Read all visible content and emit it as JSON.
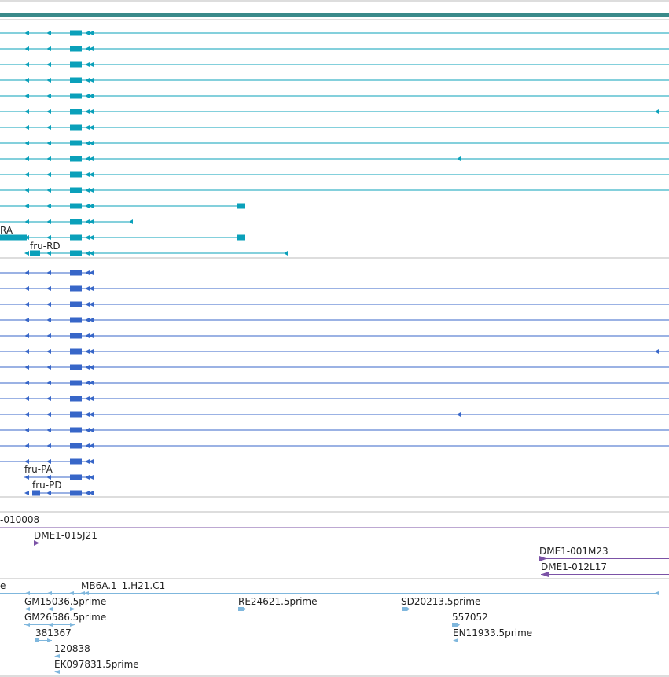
{
  "colors": {
    "header_bar": "#3a8a8a",
    "track_divider": "#bbbbbb",
    "transcript_teal": "#0aa0ba",
    "transcript_blue": "#3766c8",
    "clone_purple": "#7b52a6",
    "est_lightblue": "#7fb7dd"
  },
  "labels": {
    "teal_ra": "RA",
    "teal_rd": "fru-RD",
    "blue_pa": "fru-PA",
    "blue_pd": "fru-PD",
    "clone_010008": "-010008",
    "clone_015j21": "DME1-015J21",
    "clone_001m23": "DME1-001M23",
    "clone_012l17": "DME1-012L17",
    "est_e": "e",
    "est_mb6a": "MB6A.1_1.H21.C1",
    "est_gm15036": "GM15036.5prime",
    "est_re24621": "RE24621.5prime",
    "est_sd20213": "SD20213.5prime",
    "est_gm26586": "GM26586.5prime",
    "est_557052": "557052",
    "est_381367": "381367",
    "est_en11933": "EN11933.5prime",
    "est_120838": "120838",
    "est_ek097831": "EK097831.5prime"
  }
}
